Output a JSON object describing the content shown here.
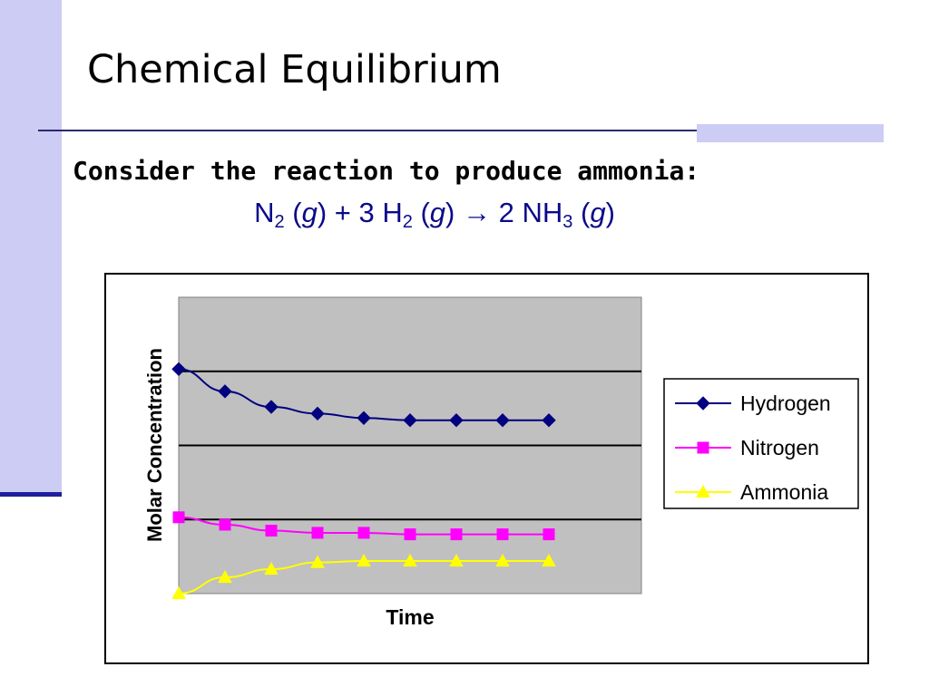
{
  "slide": {
    "title": "Chemical Equilibrium",
    "subtitle": "Consider the reaction to produce ammonia:",
    "equation": {
      "n2": "N",
      "n2_sub": "2",
      "n2_state_open": " (",
      "g1": "g",
      "n2_state_close": ") + 3 H",
      "h2_sub": "2",
      "h2_state_open": " (",
      "g2": "g",
      "h2_state_close": ")",
      "arrow": "→",
      "nh3": "2 NH",
      "nh3_sub": "3",
      "nh3_state_open": " (",
      "g3": "g",
      "nh3_state_close": ")"
    }
  },
  "colors": {
    "hydrogen": "#000080",
    "nitrogen": "#ff00ff",
    "ammonia": "#ffff00",
    "plot_bg": "#c0c0c0"
  },
  "chart_data": {
    "type": "line",
    "xlabel": "Time",
    "ylabel": "Molar Concentration",
    "grid": true,
    "legend_position": "right",
    "x": [
      0,
      1,
      2,
      3,
      4,
      5,
      6,
      7,
      8
    ],
    "ylim": [
      0,
      4
    ],
    "series": [
      {
        "name": "Hydrogen",
        "marker": "diamond",
        "color": "#000080",
        "values": [
          3.03,
          2.73,
          2.52,
          2.43,
          2.37,
          2.34,
          2.34,
          2.34,
          2.34
        ]
      },
      {
        "name": "Nitrogen",
        "marker": "square",
        "color": "#ff00ff",
        "values": [
          1.03,
          0.93,
          0.85,
          0.82,
          0.82,
          0.8,
          0.8,
          0.8,
          0.8
        ]
      },
      {
        "name": "Ammonia",
        "marker": "triangle",
        "color": "#ffff00",
        "values": [
          0.0,
          0.22,
          0.33,
          0.42,
          0.44,
          0.44,
          0.44,
          0.44,
          0.44
        ]
      }
    ]
  }
}
